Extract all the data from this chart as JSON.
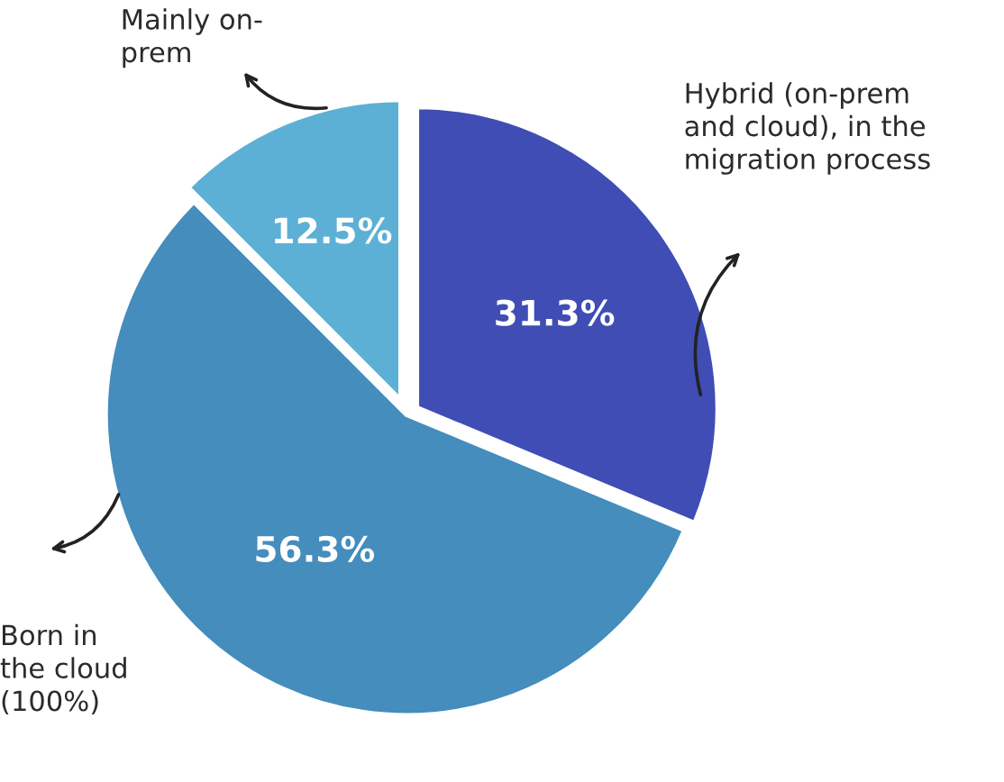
{
  "chart_data": {
    "type": "pie",
    "categories": [
      "Hybrid (on-prem\nand cloud), in the\nmigration process",
      "Born in\nthe cloud\n(100%)",
      "Mainly on-\nprem"
    ],
    "values": [
      31.3,
      56.3,
      12.5
    ],
    "colors": [
      "#3f4db5",
      "#448dbd",
      "#5db0d5"
    ],
    "value_labels": [
      "31.3%",
      "56.3%",
      "12.5%"
    ],
    "legend": false
  }
}
